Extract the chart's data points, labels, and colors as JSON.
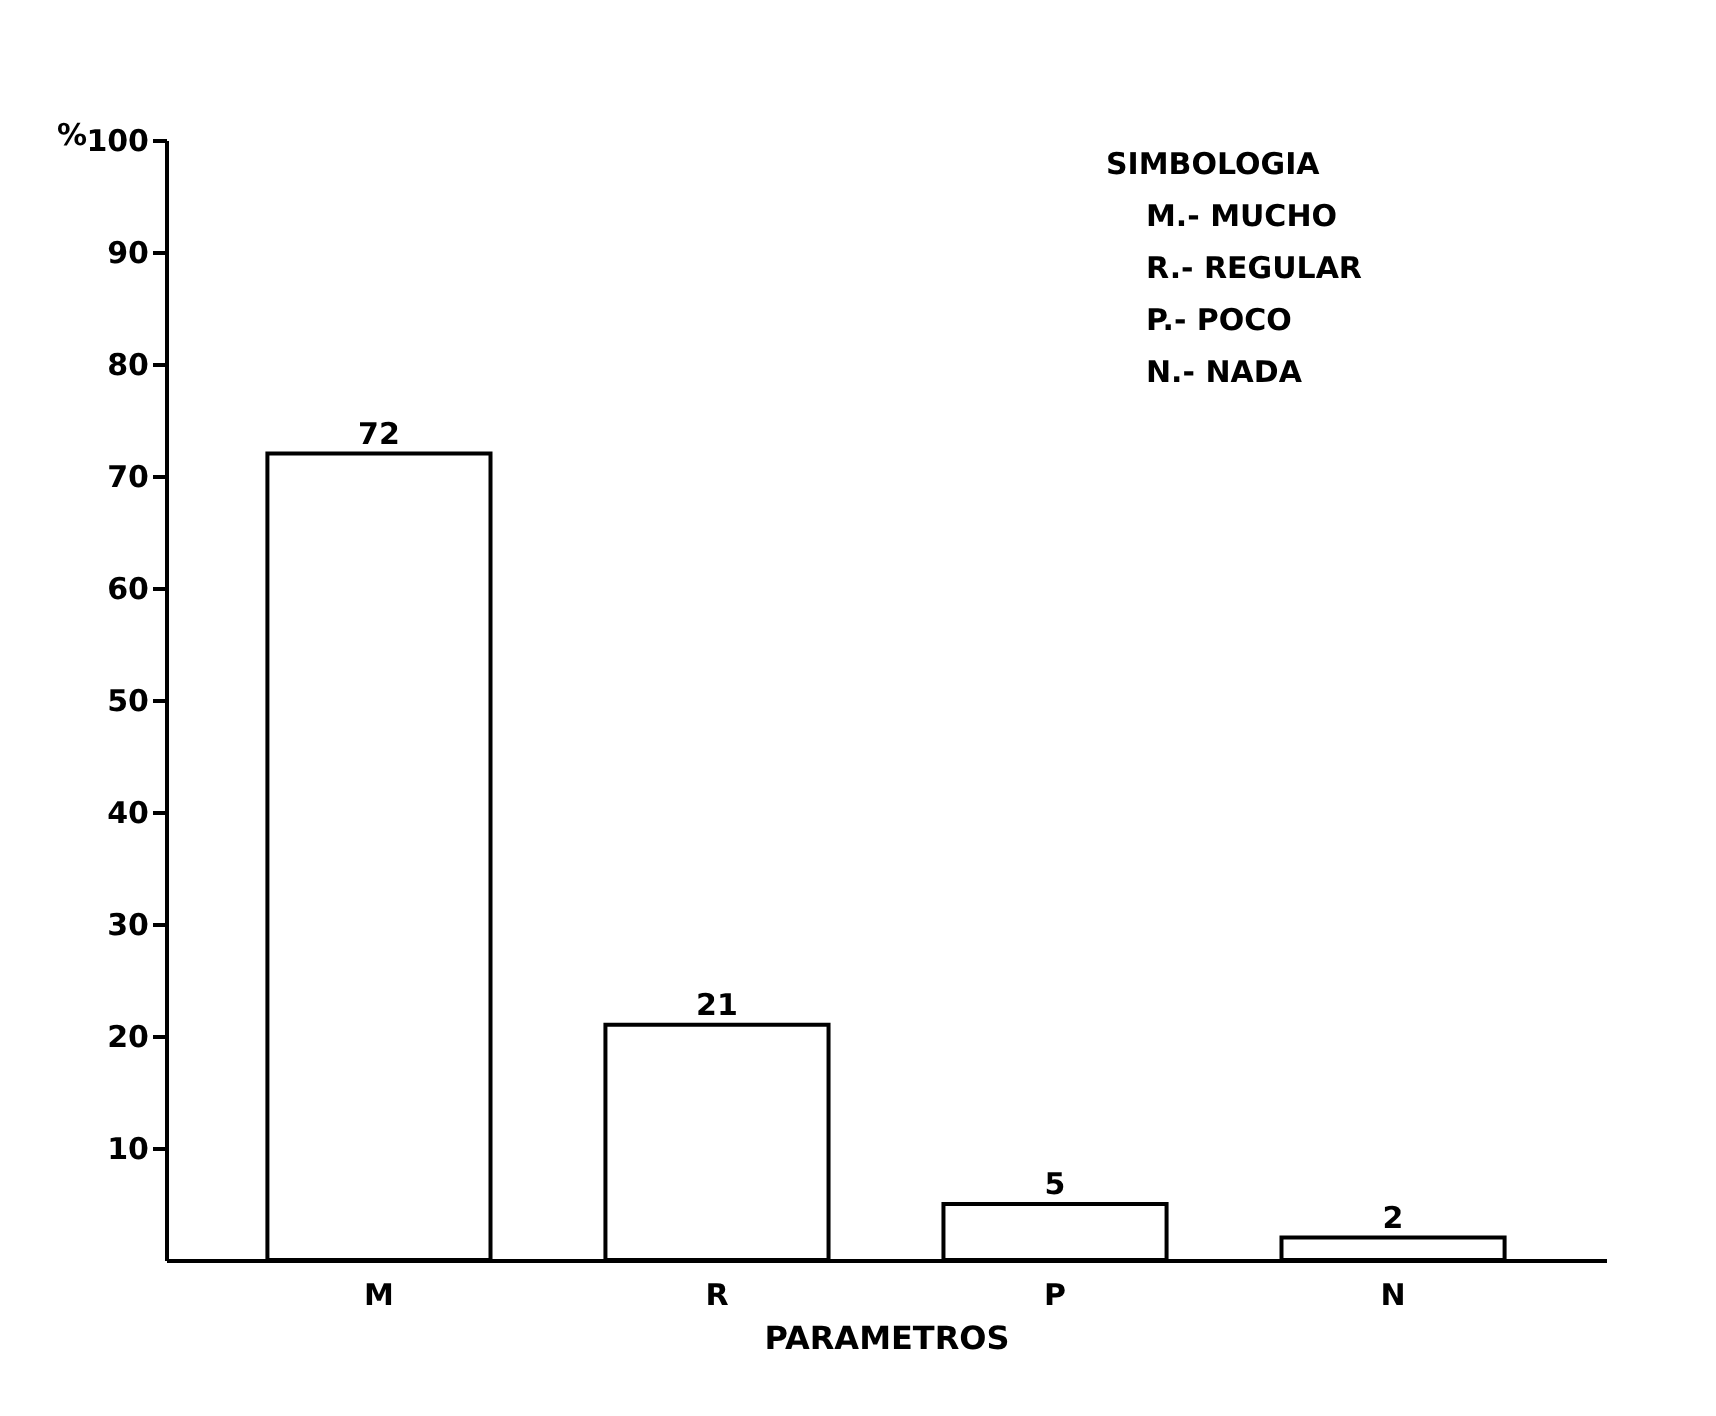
{
  "chart_data": {
    "type": "bar",
    "xlabel": "PARAMETROS",
    "ylabel": "%",
    "categories": [
      "M",
      "R",
      "P",
      "N"
    ],
    "values": [
      72,
      21,
      5,
      2
    ],
    "color": "#ffffff",
    "ylim": [
      0,
      100
    ],
    "yticks": [
      10,
      20,
      30,
      40,
      50,
      60,
      70,
      80,
      90,
      100
    ],
    "data_labels": true,
    "grid": false,
    "annotations": [
      "SIMBOLOGIA",
      "M.- MUCHO",
      "R.- REGULAR",
      "P.- POCO",
      "N.- NADA"
    ]
  }
}
